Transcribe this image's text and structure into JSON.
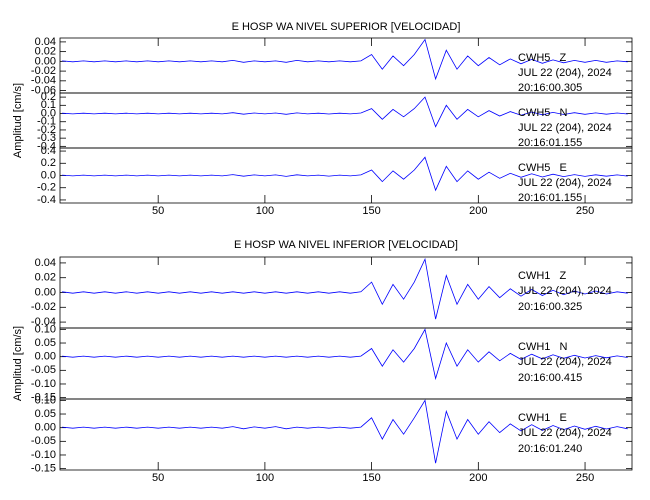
{
  "chart_data": [
    {
      "type": "line",
      "title": "E HOSP WA NIVEL SUPERIOR [VELOCIDAD]",
      "ylabel": "Amplitud [cm/s]",
      "xlim": [
        4,
        272
      ],
      "xticks": [
        50,
        100,
        150,
        200,
        250
      ],
      "color": "#0000ff",
      "x": [
        5,
        10,
        15,
        20,
        25,
        30,
        35,
        40,
        45,
        50,
        55,
        60,
        65,
        70,
        75,
        80,
        85,
        90,
        95,
        100,
        105,
        110,
        115,
        120,
        125,
        130,
        135,
        140,
        145,
        150,
        155,
        160,
        165,
        170,
        175,
        180,
        185,
        190,
        195,
        200,
        205,
        210,
        215,
        220,
        225,
        230,
        235,
        240,
        245,
        250,
        255,
        260,
        265,
        270
      ],
      "panels": [
        {
          "station": "CWH5   Z",
          "date": "JUL 22 (204), 2024",
          "time": "20:16:00.305",
          "ylim": [
            -0.065,
            0.048
          ],
          "yticks": [
            0.04,
            0.02,
            {
              "value": 0,
              "label": "0.00"
            },
            -0.02,
            -0.04,
            -0.06
          ],
          "values": [
            0.001,
            -0.001,
            0.001,
            -0.001,
            0.001,
            -0.001,
            0.001,
            -0.001,
            0.001,
            -0.001,
            0.001,
            -0.001,
            0.001,
            -0.001,
            0.001,
            -0.001,
            0.002,
            -0.002,
            0.001,
            -0.001,
            0.001,
            -0.002,
            0.002,
            -0.001,
            0.001,
            -0.001,
            0.001,
            -0.001,
            0.001,
            0.014,
            -0.016,
            0.011,
            -0.009,
            0.014,
            0.045,
            -0.036,
            0.023,
            -0.016,
            0.011,
            -0.009,
            0.008,
            -0.007,
            0.005,
            -0.005,
            0.004,
            -0.004,
            0.003,
            -0.003,
            0.002,
            -0.002,
            0.002,
            -0.002,
            0.001,
            -0.001
          ]
        },
        {
          "station": "CWH5   N",
          "date": "JUL 22 (204), 2024",
          "time": "20:16:01.155",
          "ylim": [
            -0.42,
            0.25
          ],
          "yticks": [
            0.2,
            0.1,
            {
              "value": 0,
              "label": "0.0"
            },
            -0.1,
            -0.2,
            -0.3,
            -0.4
          ],
          "values": [
            0.004,
            -0.004,
            0.004,
            -0.004,
            0.004,
            -0.004,
            0.004,
            -0.004,
            0.004,
            -0.004,
            0.004,
            -0.004,
            0.004,
            -0.004,
            0.004,
            -0.004,
            0.01,
            -0.008,
            0.006,
            -0.004,
            0.006,
            -0.01,
            0.008,
            -0.004,
            0.004,
            -0.006,
            0.004,
            -0.004,
            0.006,
            0.06,
            -0.07,
            0.05,
            -0.04,
            0.06,
            0.2,
            -0.16,
            0.1,
            -0.07,
            0.05,
            -0.04,
            0.036,
            -0.03,
            0.024,
            -0.02,
            0.018,
            -0.016,
            0.014,
            -0.012,
            0.01,
            -0.01,
            0.008,
            -0.008,
            0.006,
            -0.006
          ]
        },
        {
          "station": "CWH5   E",
          "date": "JUL 22 (204), 2024",
          "time": "20:16:01.155",
          "ylim": [
            -0.45,
            0.45
          ],
          "yticks": [
            0.4,
            0.2,
            {
              "value": 0,
              "label": "0.0"
            },
            -0.2,
            -0.4
          ],
          "values": [
            0.006,
            -0.006,
            0.006,
            -0.006,
            0.006,
            -0.006,
            0.006,
            -0.006,
            0.006,
            -0.006,
            0.006,
            -0.006,
            0.006,
            -0.006,
            0.006,
            -0.006,
            0.015,
            -0.012,
            0.009,
            -0.006,
            0.009,
            -0.015,
            0.012,
            -0.006,
            0.006,
            -0.009,
            0.006,
            -0.006,
            0.009,
            0.09,
            -0.1,
            0.075,
            -0.06,
            0.09,
            0.3,
            -0.24,
            0.15,
            -0.1,
            0.075,
            -0.06,
            0.054,
            -0.045,
            0.036,
            -0.03,
            0.027,
            -0.024,
            0.021,
            -0.018,
            0.015,
            -0.015,
            0.012,
            -0.012,
            0.009,
            -0.009
          ]
        }
      ]
    },
    {
      "type": "line",
      "title": "E HOSP WA NIVEL INFERIOR [VELOCIDAD]",
      "ylabel": "Amplitud [cm/s]",
      "xlim": [
        4,
        272
      ],
      "xticks": [
        50,
        100,
        150,
        200,
        250
      ],
      "color": "#0000ff",
      "x": [
        5,
        10,
        15,
        20,
        25,
        30,
        35,
        40,
        45,
        50,
        55,
        60,
        65,
        70,
        75,
        80,
        85,
        90,
        95,
        100,
        105,
        110,
        115,
        120,
        125,
        130,
        135,
        140,
        145,
        150,
        155,
        160,
        165,
        170,
        175,
        180,
        185,
        190,
        195,
        200,
        205,
        210,
        215,
        220,
        225,
        230,
        235,
        240,
        245,
        250,
        255,
        260,
        265,
        270
      ],
      "panels": [
        {
          "station": "CWH1   Z",
          "date": "JUL 22 (204), 2024",
          "time": "20:16:00.325",
          "ylim": [
            -0.048,
            0.048
          ],
          "yticks": [
            0.04,
            0.02,
            {
              "value": 0,
              "label": "0.00"
            },
            -0.02,
            -0.04
          ],
          "values": [
            0.001,
            -0.001,
            0.001,
            -0.001,
            0.001,
            -0.001,
            0.001,
            -0.001,
            0.001,
            -0.001,
            0.001,
            -0.001,
            0.001,
            -0.001,
            0.001,
            -0.001,
            0.001,
            -0.001,
            0.001,
            -0.001,
            0.001,
            -0.001,
            0.001,
            -0.001,
            0.001,
            -0.001,
            0.001,
            -0.001,
            0.001,
            0.014,
            -0.016,
            0.011,
            -0.009,
            0.014,
            0.045,
            -0.036,
            0.023,
            -0.016,
            0.011,
            -0.009,
            0.008,
            -0.007,
            0.005,
            -0.005,
            0.004,
            -0.004,
            0.003,
            -0.003,
            0.002,
            -0.002,
            0.002,
            -0.002,
            0.001,
            -0.001
          ]
        },
        {
          "station": "CWH1   N",
          "date": "JUL 22 (204), 2024",
          "time": "20:16:00.415",
          "ylim": [
            -0.155,
            0.105
          ],
          "yticks": [
            {
              "value": 0.1,
              "label": "0.10"
            },
            0.05,
            {
              "value": 0,
              "label": "0.00"
            },
            -0.05,
            {
              "value": -0.1,
              "label": "-0.10"
            },
            -0.15
          ],
          "values": [
            0.002,
            -0.002,
            0.002,
            -0.002,
            0.002,
            -0.002,
            0.002,
            -0.002,
            0.002,
            -0.002,
            0.002,
            -0.002,
            0.002,
            -0.002,
            0.002,
            -0.002,
            0.002,
            -0.002,
            0.002,
            -0.002,
            0.002,
            -0.002,
            0.002,
            -0.002,
            0.002,
            -0.002,
            0.002,
            -0.002,
            0.002,
            0.03,
            -0.035,
            0.025,
            -0.02,
            0.03,
            0.1,
            -0.08,
            0.05,
            -0.035,
            0.025,
            -0.02,
            0.018,
            -0.015,
            0.012,
            -0.01,
            0.009,
            -0.008,
            0.007,
            -0.006,
            0.005,
            -0.005,
            0.004,
            -0.004,
            0.003,
            -0.003
          ]
        },
        {
          "station": "CWH1   E",
          "date": "JUL 22 (204), 2024",
          "time": "20:16:01.240",
          "ylim": [
            -0.155,
            0.105
          ],
          "yticks": [
            {
              "value": 0.1,
              "label": "0.10"
            },
            0.05,
            {
              "value": 0,
              "label": "0.00"
            },
            -0.05,
            {
              "value": -0.1,
              "label": "-0.10"
            },
            -0.15
          ],
          "values": [
            0.002,
            -0.002,
            0.002,
            -0.002,
            0.002,
            -0.002,
            0.002,
            -0.002,
            0.002,
            -0.002,
            0.002,
            -0.002,
            0.002,
            -0.002,
            0.002,
            -0.002,
            0.004,
            -0.004,
            0.003,
            -0.002,
            0.004,
            -0.004,
            0.002,
            -0.002,
            0.002,
            -0.002,
            0.002,
            -0.002,
            0.002,
            0.036,
            -0.042,
            0.03,
            -0.024,
            0.036,
            0.1,
            -0.13,
            0.06,
            -0.042,
            0.03,
            -0.024,
            0.022,
            -0.018,
            0.014,
            -0.012,
            0.011,
            -0.01,
            0.008,
            -0.007,
            0.006,
            -0.006,
            0.005,
            -0.005,
            0.004,
            -0.004
          ]
        }
      ]
    }
  ]
}
